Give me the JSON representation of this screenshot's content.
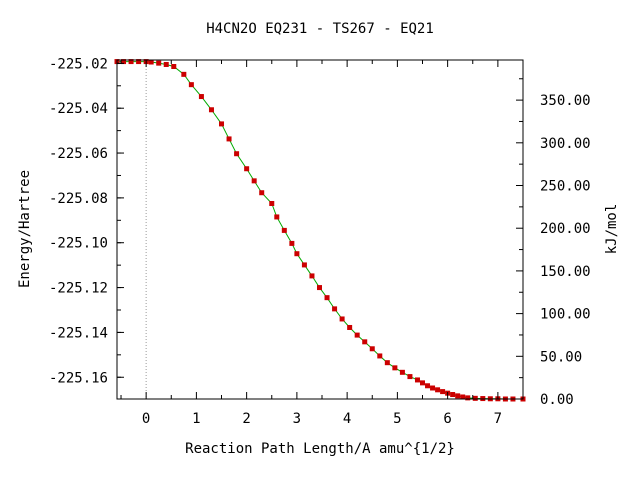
{
  "chart_data": {
    "type": "line",
    "title": "H4CN2O   EQ231 - TS267 - EQ21",
    "xlabel": "Reaction Path Length/A amu^{1/2}",
    "ylabel": "Energy/Hartree",
    "y2label": "kJ/mol",
    "xlim": [
      -0.58,
      7.5
    ],
    "ylim": [
      -225.1697,
      -225.0185
    ],
    "x_ticks": [
      0,
      1,
      2,
      3,
      4,
      5,
      6,
      7
    ],
    "x_tick_labels": [
      "0",
      "1",
      "2",
      "3",
      "4",
      "5",
      "6",
      "7"
    ],
    "y_ticks": [
      -225.02,
      -225.04,
      -225.06,
      -225.08,
      -225.1,
      -225.12,
      -225.14,
      -225.16
    ],
    "y_tick_labels": [
      "-225.02",
      "-225.04",
      "-225.06",
      "-225.08",
      "-225.10",
      "-225.12",
      "-225.14",
      "-225.16"
    ],
    "y2_ticks": [
      0,
      50,
      100,
      150,
      200,
      250,
      300,
      350
    ],
    "y2_tick_labels": [
      "0.00",
      "50.00",
      "100.00",
      "150.00",
      "200.00",
      "250.00",
      "300.00",
      "350.00"
    ],
    "y2_reference_energy": -225.1697,
    "hartree_to_kjmol": 2625.5,
    "ts_marker_x": 0,
    "colors": {
      "line": "#00aa00",
      "marker": "#cc0000",
      "ts_line": "#999999"
    },
    "series": [
      {
        "x": [
          -0.58,
          -0.45,
          -0.3,
          -0.15,
          0,
          0.1,
          0.25,
          0.4,
          0.55,
          0.75,
          0.9,
          1.1,
          1.3,
          1.5,
          1.65,
          1.8,
          2.0,
          2.15,
          2.3,
          2.5,
          2.6,
          2.75,
          2.9,
          3.0,
          3.15,
          3.3,
          3.45,
          3.6,
          3.75,
          3.9,
          4.05,
          4.2,
          4.35,
          4.5,
          4.65,
          4.8,
          4.95,
          5.1,
          5.25,
          5.4,
          5.5,
          5.6,
          5.7,
          5.8,
          5.9,
          6.0,
          6.1,
          6.2,
          6.3,
          6.4,
          6.55,
          6.7,
          6.85,
          7.0,
          7.15,
          7.3,
          7.5
        ],
        "y": [
          -225.0192,
          -225.0192,
          -225.0192,
          -225.0192,
          -225.0192,
          -225.0194,
          -225.0199,
          -225.0205,
          -225.0214,
          -225.0249,
          -225.0295,
          -225.0348,
          -225.0407,
          -225.047,
          -225.0537,
          -225.0603,
          -225.067,
          -225.0724,
          -225.0777,
          -225.0825,
          -225.0885,
          -225.0945,
          -225.1003,
          -225.1049,
          -225.1099,
          -225.1148,
          -225.12,
          -225.1245,
          -225.1295,
          -225.134,
          -225.1378,
          -225.1412,
          -225.1442,
          -225.1473,
          -225.1505,
          -225.1535,
          -225.1558,
          -225.1578,
          -225.1597,
          -225.1612,
          -225.1625,
          -225.1638,
          -225.1648,
          -225.1656,
          -225.1664,
          -225.1671,
          -225.1677,
          -225.1683,
          -225.1688,
          -225.1692,
          -225.1694,
          -225.1695,
          -225.1696,
          -225.1696,
          -225.1697,
          -225.1697,
          -225.1697
        ]
      }
    ]
  }
}
